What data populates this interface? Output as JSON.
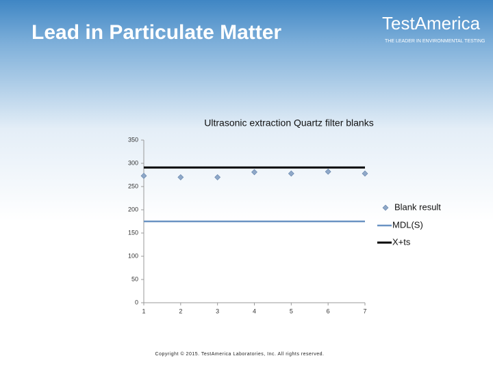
{
  "slide": {
    "title": "Lead in Particulate Matter",
    "logo": "TestAmerica",
    "tagline": "THE LEADER IN ENVIRONMENTAL TESTING",
    "copyright": "Copyright © 2015. TestAmerica Laboratories, Inc. All rights reserved."
  },
  "chart_data": {
    "type": "line",
    "title": "Ultrasonic extraction Quartz filter blanks",
    "x": [
      1,
      2,
      3,
      4,
      5,
      6,
      7
    ],
    "xlim": [
      1,
      7
    ],
    "xticks": [
      1,
      2,
      3,
      4,
      5,
      6,
      7
    ],
    "ylim": [
      0,
      350
    ],
    "yticks": [
      0,
      50,
      100,
      150,
      200,
      250,
      300,
      350
    ],
    "grid": false,
    "legend": "right",
    "series": [
      {
        "name": "Blank result",
        "color": "#8fa8c8",
        "mode": "markers",
        "values": [
          273,
          270,
          270,
          281,
          278,
          282,
          278
        ]
      },
      {
        "name": "MDL(S)",
        "color": "#6a93c3",
        "mode": "line",
        "values": [
          175,
          175,
          175,
          175,
          175,
          175,
          175
        ]
      },
      {
        "name": "X+ts",
        "color": "#000000",
        "mode": "line",
        "values": [
          291,
          291,
          291,
          291,
          291,
          291,
          291
        ]
      }
    ]
  }
}
